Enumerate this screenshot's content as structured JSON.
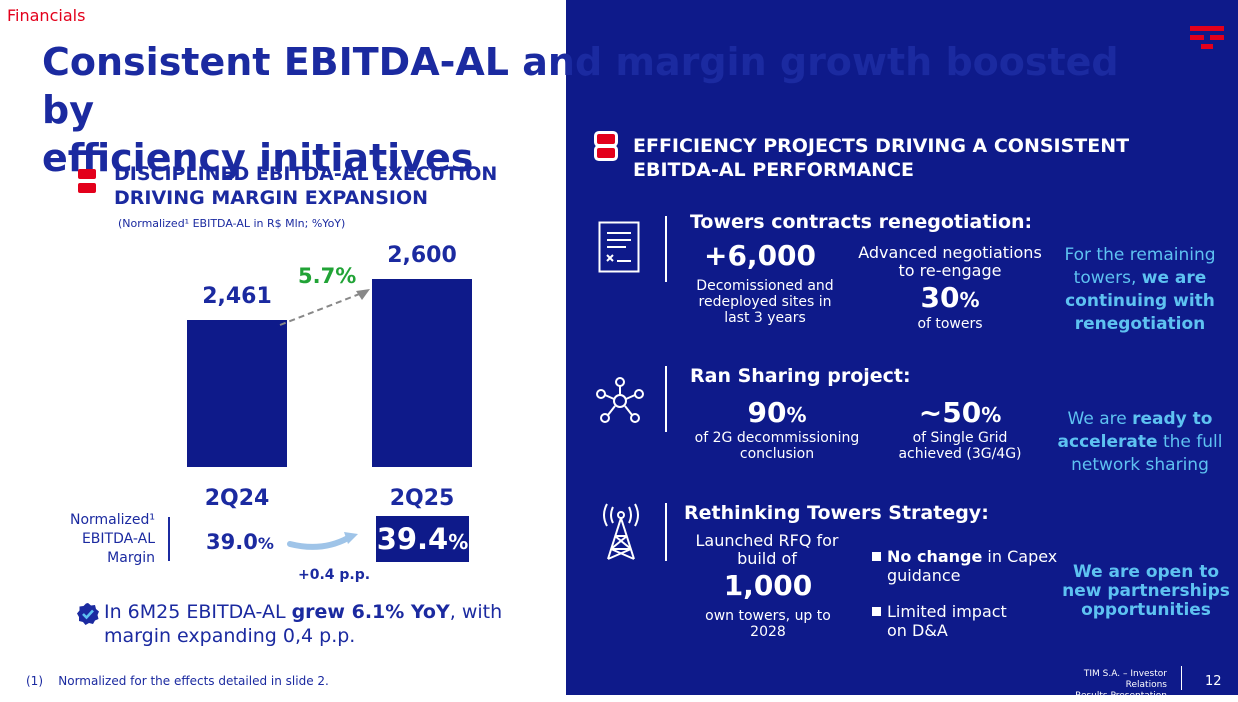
{
  "header": {
    "section_label": "Financials",
    "title_line1": "Consistent EBITDA-AL and margin growth boosted by",
    "title_line2": "efficiency initiatives"
  },
  "left": {
    "heading_line1": "DISCIPLINED EBITDA-AL EXECUTION",
    "heading_line2": "DRIVING MARGIN EXPANSION",
    "subtitle": "(Normalized¹ EBITDA-AL in R$ Mln; %YoY)",
    "growth_label": "5.7%",
    "margin_label_line1": "Normalized¹",
    "margin_label_line2": "EBITDA-AL",
    "margin_label_line3": "Margin",
    "margin_2q24_value": "39.0",
    "margin_2q24_pct": "%",
    "margin_2q25_value": "39.4",
    "margin_2q25_pct": "%",
    "margin_change": "+0.4 p.p.",
    "note_prefix": "In 6M25 EBITDA-AL ",
    "note_bold": "grew 6.1% YoY",
    "note_suffix": ", with margin expanding 0,4 p.p.",
    "footnote_num": "(1)",
    "footnote_text": "Normalized for the effects detailed in slide 2."
  },
  "chart_data": {
    "type": "bar",
    "title": "Normalized¹ EBITDA-AL in R$ Mln",
    "categories": [
      "2Q24",
      "2Q25"
    ],
    "values": [
      2461,
      2600
    ],
    "value_labels": [
      "2,461",
      "2,600"
    ],
    "growth_yoy_pct": 5.7,
    "ylim": [
      0,
      2600
    ]
  },
  "right": {
    "heading_line1": "EFFICIENCY PROJECTS DRIVING A CONSISTENT",
    "heading_line2": "EBITDA-AL PERFORMANCE",
    "towers": {
      "title": "Towers contracts renegotiation:",
      "stat1_value": "+6,000",
      "stat1_desc_line1": "Decomissioned and",
      "stat1_desc_line2": "redeployed sites in",
      "stat1_desc_line3": "last 3 years",
      "stat2_pre_line1": "Advanced negotiations",
      "stat2_pre_line2": "to re-engage",
      "stat2_value": "30",
      "stat2_pct": "%",
      "stat2_desc": "of towers",
      "side_line1": "For the remaining",
      "side_line2_plain": "towers, ",
      "side_line2_bold": "we are",
      "side_line3": "continuing with",
      "side_line4": "renegotiation"
    },
    "ran": {
      "title": "Ran Sharing project:",
      "stat1_value": "90",
      "stat1_pct": "%",
      "stat1_desc_line1": "of 2G decommissioning",
      "stat1_desc_line2": "conclusion",
      "stat2_value": "~50",
      "stat2_pct": "%",
      "stat2_desc_line1": "of Single Grid",
      "stat2_desc_line2": "achieved (3G/4G)",
      "side_line1": "We are ",
      "side_line1_bold": "ready to",
      "side_line2_bold": "accelerate",
      "side_line2": " the full",
      "side_line3": "network sharing"
    },
    "rethink": {
      "title": "Rethinking Towers Strategy:",
      "rfq_line1": "Launched RFQ for",
      "rfq_line2": "build of",
      "rfq_value": "1,000",
      "rfq_desc_line1": "own towers, up to",
      "rfq_desc_line2": "2028",
      "bullet1_bold": "No change",
      "bullet1_rest": " in Capex",
      "bullet1_line2": "guidance",
      "bullet2_line1": "Limited impact",
      "bullet2_line2": "on D&A",
      "side_line1": "We are open to",
      "side_line2": "new partnerships",
      "side_line3": "opportunities"
    }
  },
  "footer": {
    "company_line": "TIM S.A. – Investor Relations",
    "doc_line": "Results Presentation",
    "page_number": "12"
  },
  "icons": [
    "tim-logo-icon",
    "red-bullet-icon",
    "document-icon",
    "network-hub-icon",
    "tower-antenna-icon",
    "check-badge-icon",
    "curved-arrow-icon"
  ],
  "colors": {
    "brand_blue": "#1b2aa0",
    "dark_panel": "#0e1a8a",
    "accent_red": "#e3001b",
    "growth_green": "#21a336",
    "cyan": "#5ec2f1"
  }
}
